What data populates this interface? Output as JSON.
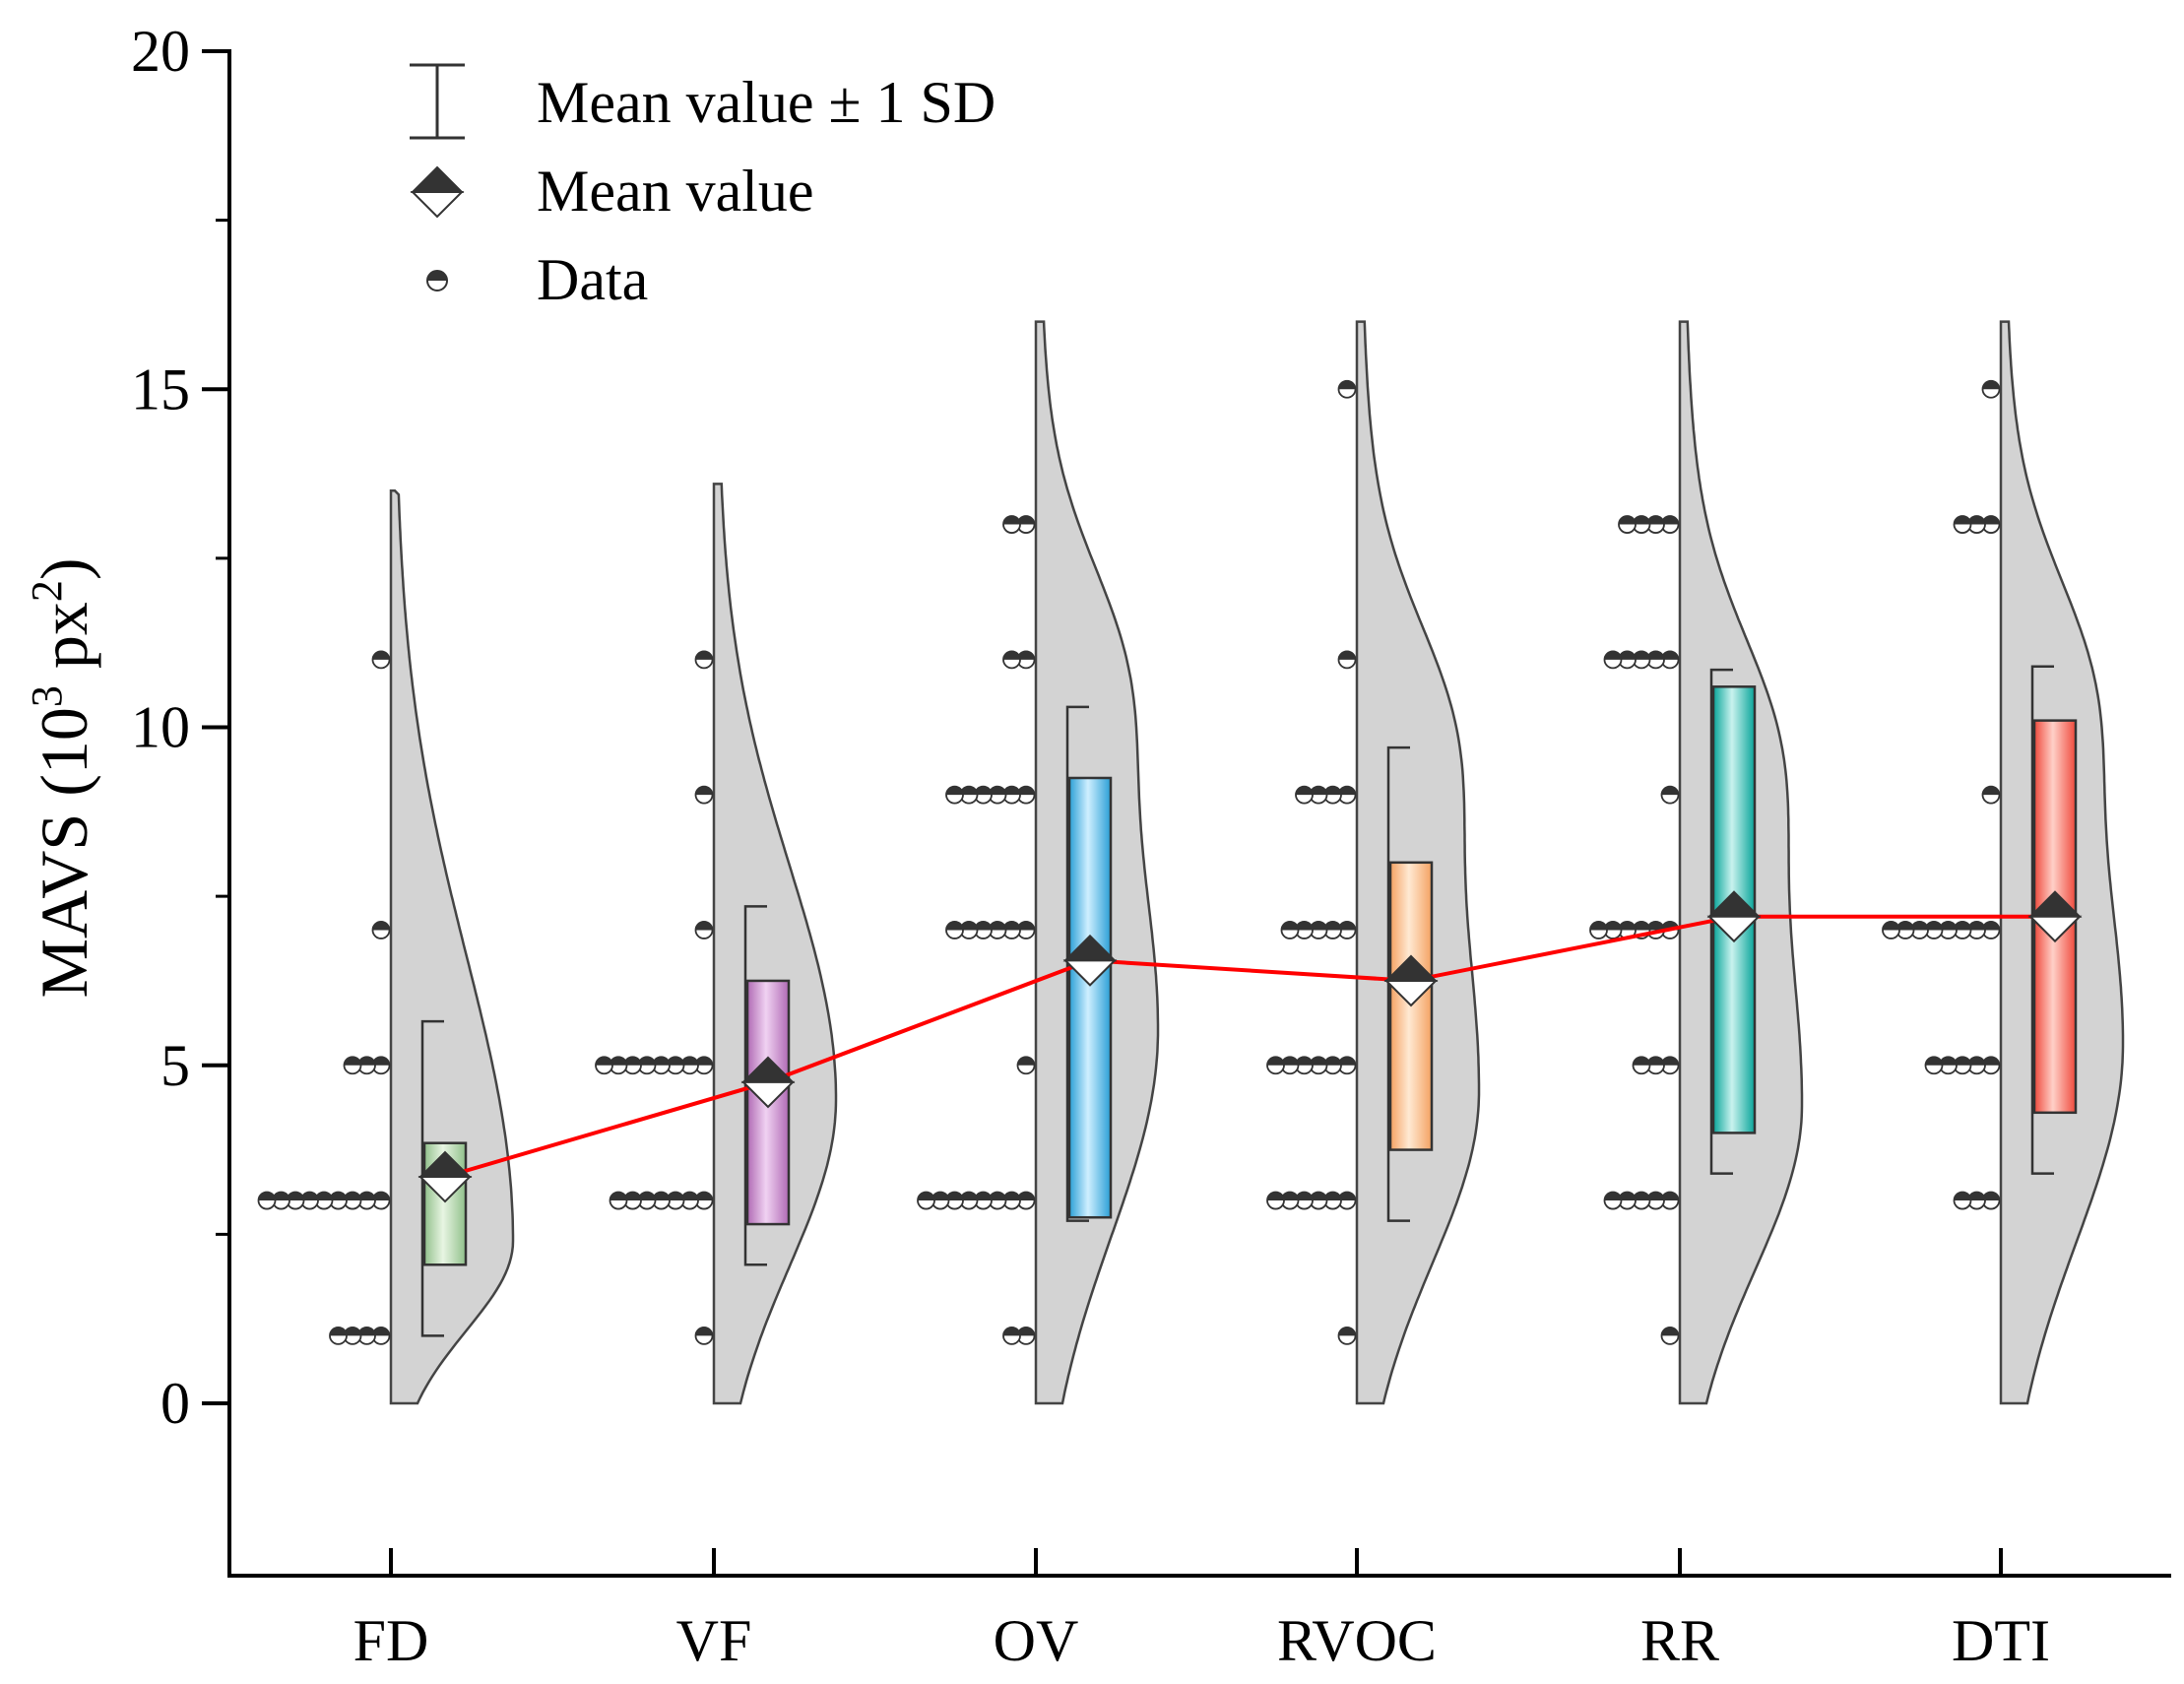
{
  "chart_data": {
    "type": "raincloud",
    "title": "",
    "ylabel": "MAVS (10",
    "ylabel_sup": "3",
    "ylabel_unit": " px",
    "ylabel_unit_sup": "2",
    "ylabel_close": ")",
    "xlabel": "",
    "ylim": [
      -2.5,
      20
    ],
    "yticks": [
      0,
      5,
      10,
      15,
      20
    ],
    "yticklabels": [
      "0",
      "5",
      "10",
      "15",
      "20"
    ],
    "legend_position": "top-left",
    "legend": {
      "sd": "Mean value ± 1 SD",
      "mean": "Mean value",
      "data": "Data"
    },
    "mean_line_color": "#ff0000",
    "violin_color": "#d3d3d3",
    "categories": [
      {
        "label": "FD",
        "color": "#90c08a",
        "color_light": "#e8f5e3",
        "mean": 3.35,
        "q1": 2.05,
        "q3": 3.85,
        "sd_low": 1.0,
        "sd_high": 5.65,
        "violin_top": 13.5,
        "violin_peak": 2.4,
        "points": [
          [
            1,
            4
          ],
          [
            3,
            9
          ],
          [
            5,
            3
          ],
          [
            7,
            1
          ],
          [
            11,
            1
          ]
        ]
      },
      {
        "label": "VF",
        "color": "#b06ab4",
        "color_light": "#f0d2f2",
        "mean": 4.75,
        "q1": 2.65,
        "q3": 6.25,
        "sd_low": 2.05,
        "sd_high": 7.35,
        "violin_top": 13.6,
        "violin_peak": 4.5,
        "points": [
          [
            1,
            1
          ],
          [
            3,
            7
          ],
          [
            5,
            8
          ],
          [
            7,
            1
          ],
          [
            9,
            1
          ],
          [
            11,
            1
          ]
        ]
      },
      {
        "label": "OV",
        "color": "#2a9fd6",
        "color_light": "#cfefff",
        "mean": 6.55,
        "q1": 2.75,
        "q3": 9.25,
        "sd_low": 2.7,
        "sd_high": 10.3,
        "violin_top": 16,
        "violin_peak": 5.5,
        "points": [
          [
            1,
            2
          ],
          [
            3,
            8
          ],
          [
            5,
            1
          ],
          [
            7,
            6
          ],
          [
            9,
            6
          ],
          [
            11,
            2
          ],
          [
            13,
            2
          ]
        ]
      },
      {
        "label": "RVOC",
        "color": "#f4a262",
        "color_light": "#ffe9d3",
        "mean": 6.25,
        "q1": 3.75,
        "q3": 8.0,
        "sd_low": 2.7,
        "sd_high": 9.7,
        "violin_top": 16,
        "violin_peak": 4.6,
        "points": [
          [
            1,
            1
          ],
          [
            3,
            6
          ],
          [
            5,
            6
          ],
          [
            7,
            5
          ],
          [
            9,
            4
          ],
          [
            11,
            1
          ],
          [
            15,
            1
          ]
        ]
      },
      {
        "label": "RR",
        "color": "#08a59a",
        "color_light": "#c9f2ee",
        "mean": 7.2,
        "q1": 4.0,
        "q3": 10.6,
        "sd_low": 3.4,
        "sd_high": 10.85,
        "violin_top": 16,
        "violin_peak": 4.4,
        "points": [
          [
            1,
            1
          ],
          [
            3,
            5
          ],
          [
            5,
            3
          ],
          [
            7,
            6
          ],
          [
            9,
            1
          ],
          [
            11,
            5
          ],
          [
            13,
            4
          ]
        ]
      },
      {
        "label": "DTI",
        "color": "#ef4a3c",
        "color_light": "#ffd0c8",
        "mean": 7.2,
        "q1": 4.3,
        "q3": 10.1,
        "sd_low": 3.4,
        "sd_high": 10.9,
        "violin_top": 16,
        "violin_peak": 5.3,
        "points": [
          [
            3,
            3
          ],
          [
            5,
            5
          ],
          [
            7,
            8
          ],
          [
            9,
            1
          ],
          [
            13,
            3
          ],
          [
            15,
            1
          ]
        ]
      }
    ]
  }
}
